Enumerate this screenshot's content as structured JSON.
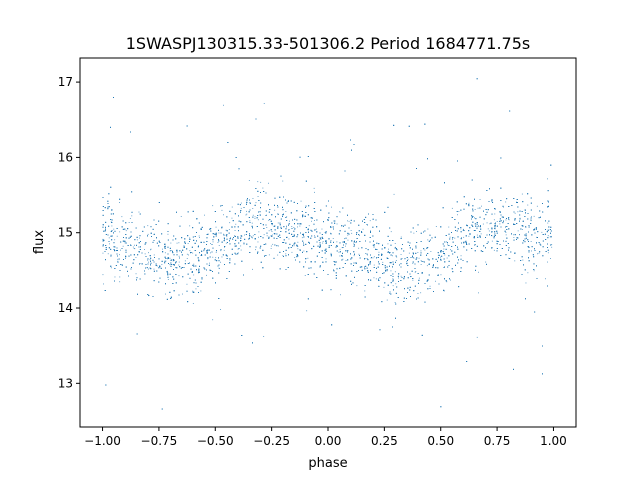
{
  "chart_data": {
    "type": "scatter",
    "title": "1SWASPJ130315.33-501306.2 Period 1684771.75s",
    "xlabel": "phase",
    "ylabel": "flux",
    "xlim": [
      -1.1,
      1.1
    ],
    "ylim": [
      12.42,
      17.32
    ],
    "xticks": [
      -1.0,
      -0.75,
      -0.5,
      -0.25,
      0.0,
      0.25,
      0.5,
      0.75,
      1.0
    ],
    "xtick_labels": [
      "−1.00",
      "−0.75",
      "−0.50",
      "−0.25",
      "0.00",
      "0.25",
      "0.50",
      "0.75",
      "1.00"
    ],
    "yticks": [
      13,
      14,
      15,
      16,
      17
    ],
    "ytick_labels": [
      "13",
      "14",
      "15",
      "16",
      "17"
    ],
    "grid": false,
    "marker_color": "#1f77b4",
    "series": [
      {
        "phase": [
          -1.0,
          -0.9,
          -0.8,
          -0.7,
          -0.6,
          -0.5,
          -0.4,
          -0.3,
          -0.2,
          -0.1,
          0.0,
          0.1,
          0.2,
          0.3,
          0.4,
          0.5,
          0.6,
          0.7,
          0.8,
          0.9,
          1.0
        ],
        "flux_median": [
          15.0,
          14.9,
          14.75,
          14.6,
          14.65,
          14.85,
          15.0,
          15.15,
          15.05,
          14.95,
          14.85,
          14.85,
          14.7,
          14.55,
          14.6,
          14.7,
          14.95,
          15.1,
          15.1,
          14.95,
          15.0
        ],
        "flux_spread": 0.35,
        "flux_min": 12.65,
        "flux_max": 17.05
      }
    ]
  }
}
